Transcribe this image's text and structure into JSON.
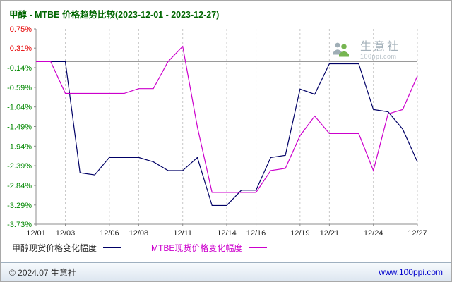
{
  "title": "甲醇 - MTBE 价格趋势比较(2023-12-01 - 2023-12-27)",
  "colors": {
    "title": "#006600",
    "footer_link": "#0000cc",
    "axis": "#8c8c8c",
    "gridline": "#c8c8c8"
  },
  "watermark": {
    "name": "生意社",
    "domain": "100ppi.com"
  },
  "legend": {
    "items": [
      {
        "label": "甲醇现货价格变化幅度",
        "text_color": "#222222",
        "line_color": "#000066"
      },
      {
        "label": "MTBE现货价格变化幅度",
        "text_color": "#cc00cc",
        "line_color": "#cc00cc"
      }
    ]
  },
  "footer": {
    "copyright": "© 2024.07 生意社",
    "site": "www.100ppi.com"
  },
  "chart_data": {
    "type": "line",
    "title": "甲醇 - MTBE 价格趋势比较(2023-12-01 - 2023-12-27)",
    "xlabel": "",
    "ylabel": "",
    "ylim": [
      -3.73,
      0.75
    ],
    "grid": "vertical-dashed",
    "legend_position": "bottom-left",
    "zero_line": 0,
    "tick_color_positive": "#e60000",
    "tick_color_negative": "#008800",
    "x": [
      "12/01",
      "12/02",
      "12/03",
      "12/04",
      "12/05",
      "12/06",
      "12/07",
      "12/08",
      "12/09",
      "12/10",
      "12/11",
      "12/12",
      "12/13",
      "12/14",
      "12/15",
      "12/16",
      "12/17",
      "12/18",
      "12/19",
      "12/20",
      "12/21",
      "12/22",
      "12/23",
      "12/24",
      "12/25",
      "12/26",
      "12/27"
    ],
    "x_tick_days": [
      1,
      3,
      6,
      8,
      11,
      14,
      16,
      19,
      21,
      24,
      27
    ],
    "x_tick_labels": [
      "12/01",
      "12/03",
      "12/06",
      "12/08",
      "12/11",
      "12/14",
      "12/16",
      "12/19",
      "12/21",
      "12/24",
      "12/27"
    ],
    "y_ticks": [
      0.75,
      0.31,
      -0.14,
      -0.59,
      -1.04,
      -1.49,
      -1.94,
      -2.39,
      -2.84,
      -3.29,
      -3.73
    ],
    "y_tick_labels": [
      "0.75%",
      "0.31%",
      "-0.14%",
      "-0.59%",
      "-1.04%",
      "-1.49%",
      "-1.94%",
      "-2.39%",
      "-2.84%",
      "-3.29%",
      "-3.73%"
    ],
    "series": [
      {
        "name": "甲醇现货价格变化幅度",
        "color": "#000066",
        "values": [
          0.0,
          0.0,
          0.0,
          -2.55,
          -2.6,
          -2.2,
          -2.2,
          -2.2,
          -2.3,
          -2.5,
          -2.5,
          -2.2,
          -3.3,
          -3.3,
          -2.95,
          -2.95,
          -2.2,
          -2.15,
          -0.63,
          -0.75,
          -0.05,
          -0.05,
          -0.05,
          -1.1,
          -1.15,
          -1.55,
          -2.3
        ]
      },
      {
        "name": "MTBE现货价格变化幅度",
        "color": "#cc00cc",
        "values": [
          0.0,
          0.0,
          -0.73,
          -0.73,
          -0.73,
          -0.73,
          -0.73,
          -0.62,
          -0.62,
          0.0,
          0.35,
          -1.5,
          -3.0,
          -3.0,
          -3.0,
          -3.0,
          -2.5,
          -2.45,
          -1.7,
          -1.25,
          -1.65,
          -1.65,
          -1.65,
          -2.5,
          -1.2,
          -1.1,
          -0.33
        ]
      }
    ]
  }
}
